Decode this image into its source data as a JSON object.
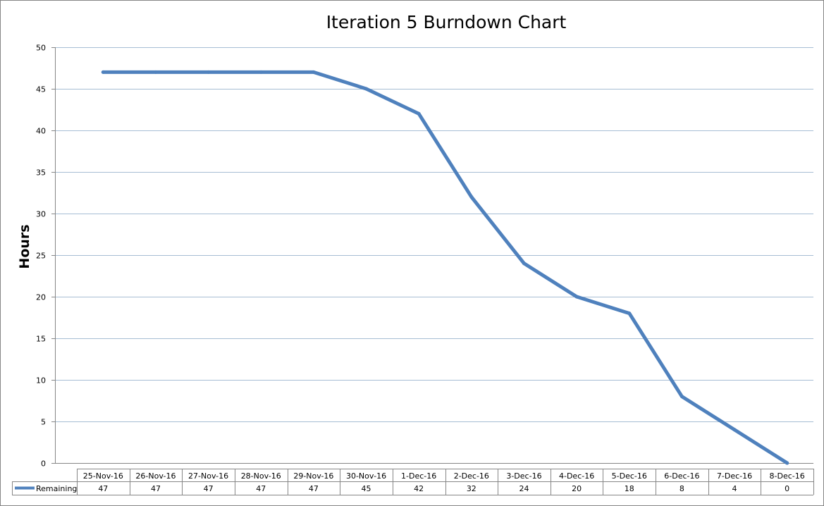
{
  "chart_data": {
    "type": "line",
    "title": "Iteration 5 Burndown Chart",
    "ylabel": "Hours",
    "xlabel": "",
    "ylim": [
      0,
      50
    ],
    "yticks": [
      "0",
      "5",
      "10",
      "15",
      "20",
      "25",
      "30",
      "35",
      "40",
      "45",
      "50"
    ],
    "ytick_values": [
      0,
      5,
      10,
      15,
      20,
      25,
      30,
      35,
      40,
      45,
      50
    ],
    "grid": "horizontal",
    "legend_placement": "data table row",
    "categories": [
      "25-Nov-16",
      "26-Nov-16",
      "27-Nov-16",
      "28-Nov-16",
      "29-Nov-16",
      "30-Nov-16",
      "1-Dec-16",
      "2-Dec-16",
      "3-Dec-16",
      "4-Dec-16",
      "5-Dec-16",
      "6-Dec-16",
      "7-Dec-16",
      "8-Dec-16"
    ],
    "series": [
      {
        "name": "Remaining",
        "color": "#4f81bd",
        "values": [
          47,
          47,
          47,
          47,
          47,
          45,
          42,
          32,
          24,
          20,
          18,
          8,
          4,
          0
        ],
        "value_labels": [
          "47",
          "47",
          "47",
          "47",
          "47",
          "45",
          "42",
          "32",
          "24",
          "20",
          "18",
          "8",
          "4",
          "0"
        ]
      }
    ]
  },
  "colors": {
    "gridline": "#a6bdd4",
    "table_border": "#868686",
    "series_line": "#4f81bd"
  }
}
